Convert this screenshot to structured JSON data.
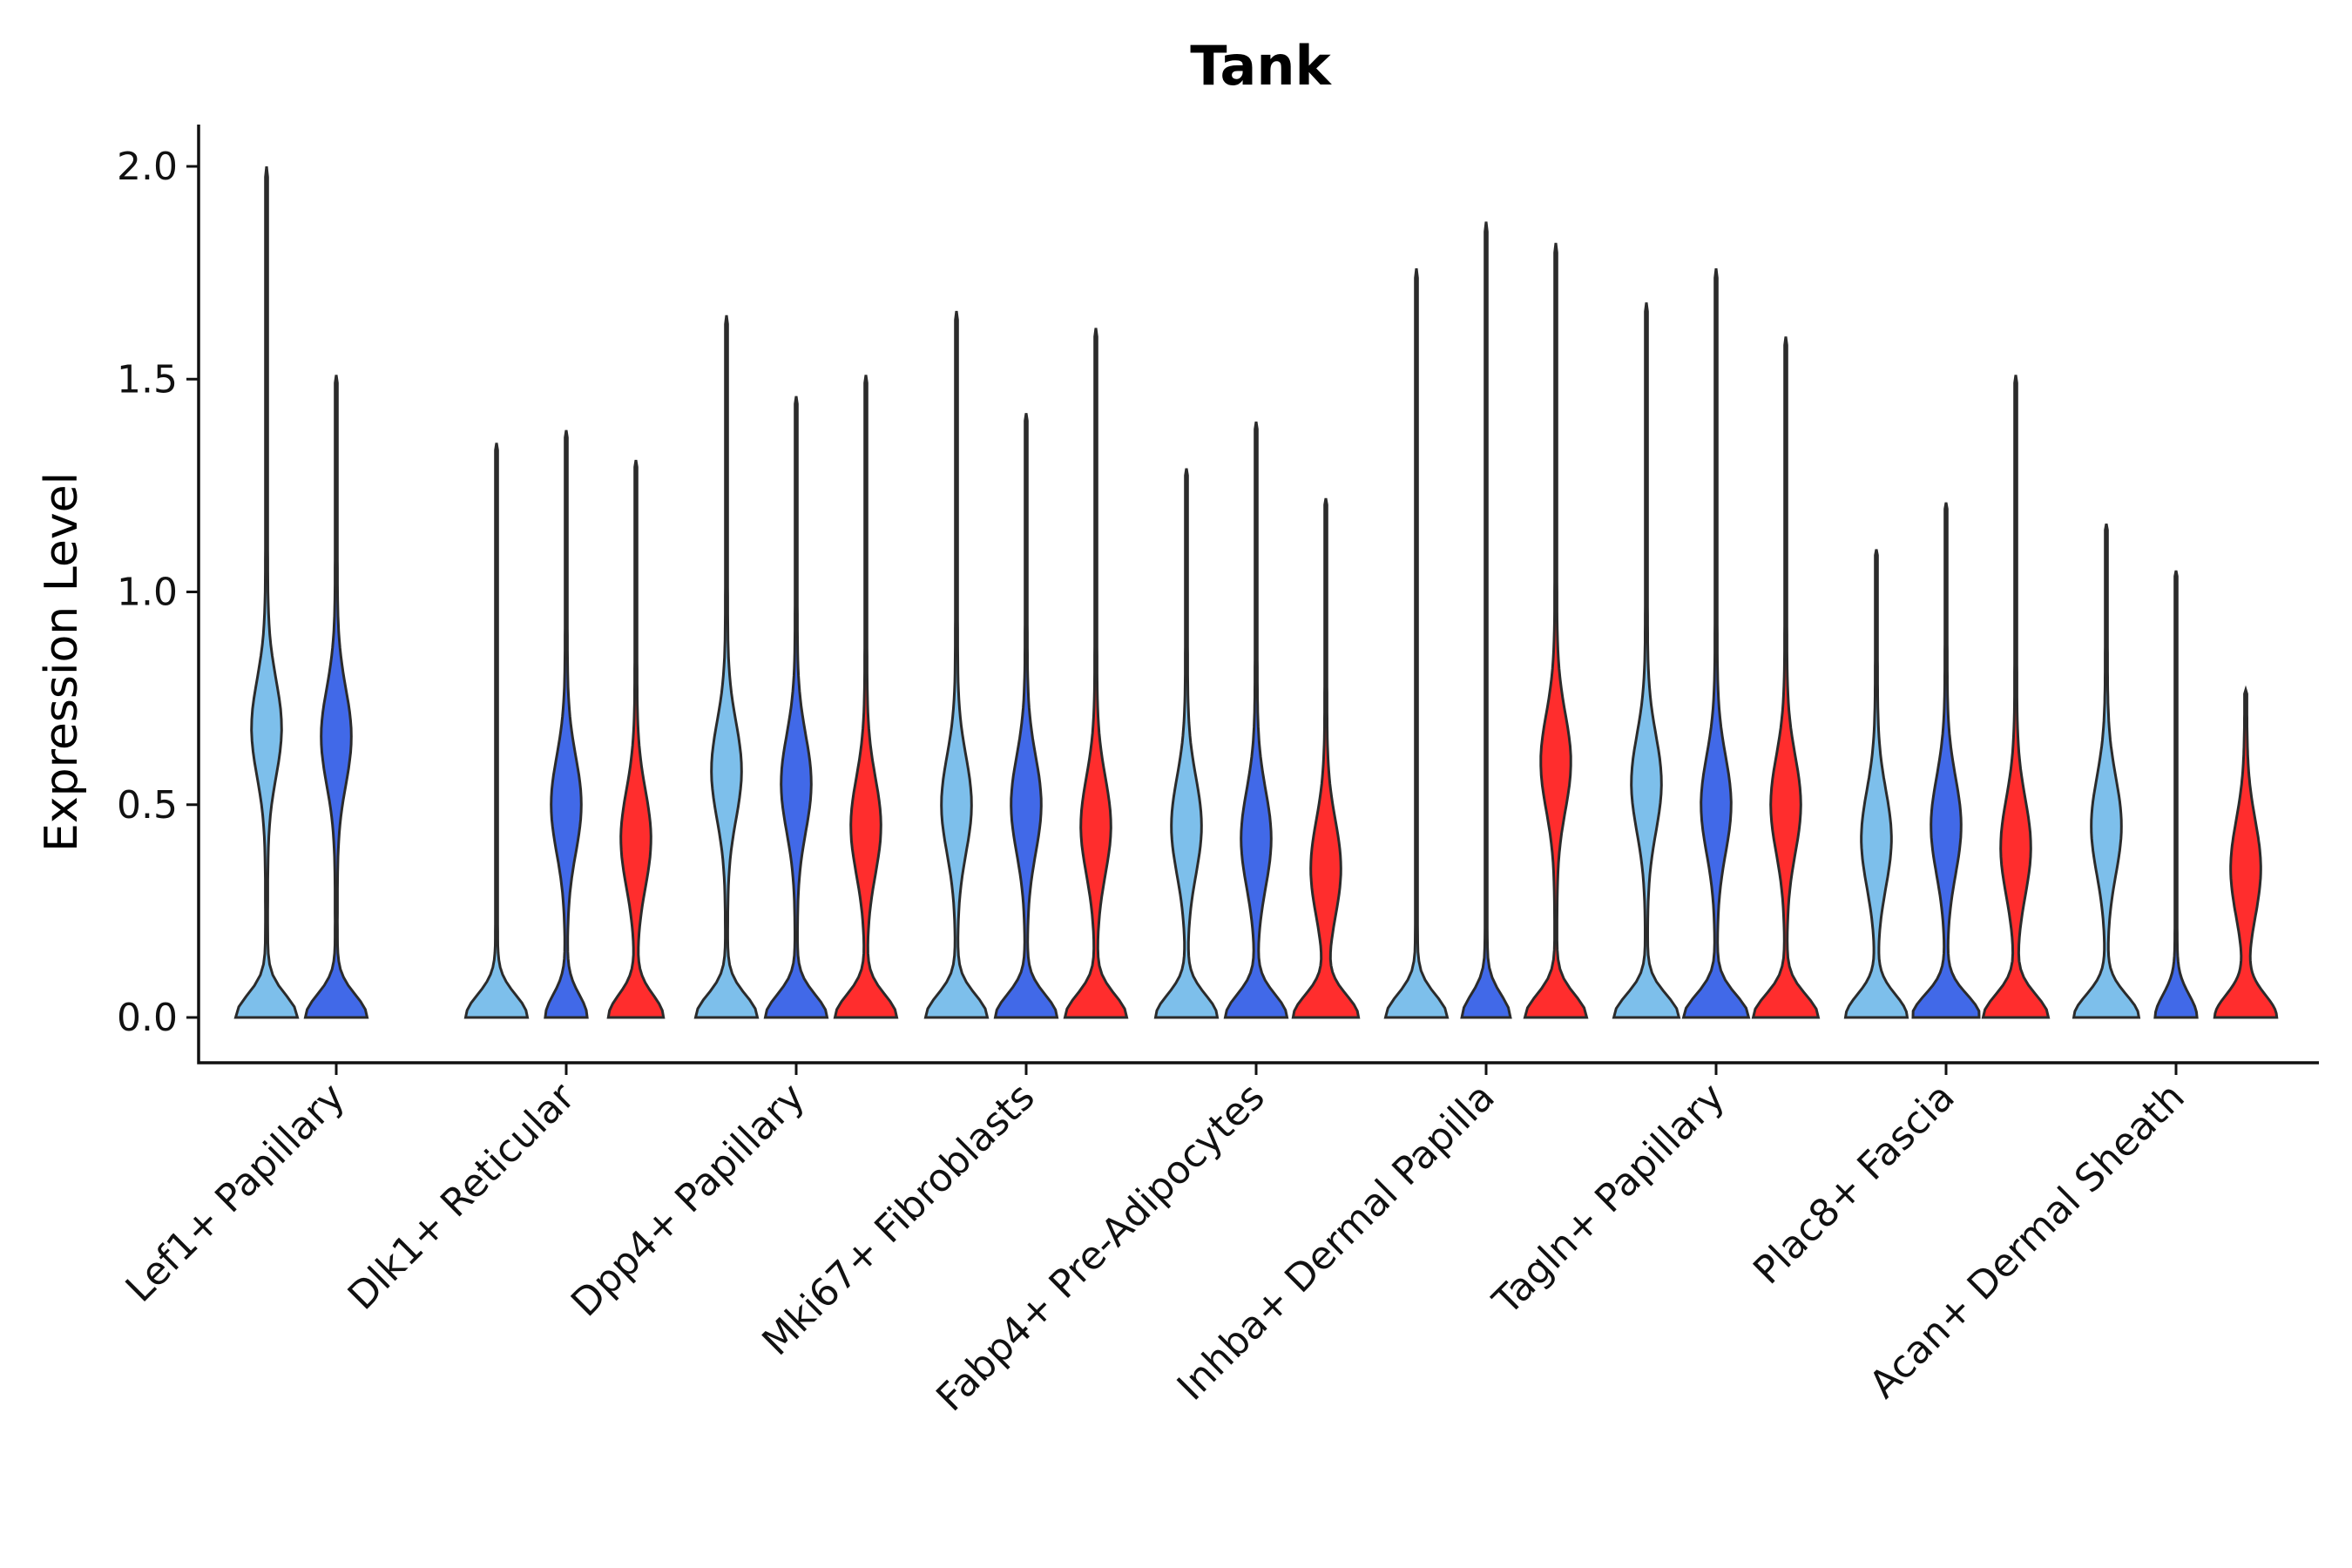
{
  "chart_data": {
    "type": "violin",
    "title": "Tank",
    "xlabel": "",
    "ylabel": "Expression Level",
    "ylim": [
      -0.1,
      2.1
    ],
    "yticks": [
      "0.0",
      "0.5",
      "1.0",
      "1.5",
      "2.0"
    ],
    "grid": false,
    "legend": "none",
    "groups": [
      {
        "name": "light",
        "color": "#7dbfeb"
      },
      {
        "name": "blue",
        "color": "#4169e8"
      },
      {
        "name": "red",
        "color": "#ff2d2d"
      }
    ],
    "categories": [
      {
        "label": "Lef1+ Papillary",
        "violins": [
          {
            "group": "light",
            "max": 2.0,
            "mode": 0.68,
            "zero_width": 0.9
          },
          {
            "group": "blue",
            "max": 1.51,
            "mode": 0.66,
            "zero_width": 0.9
          }
        ]
      },
      {
        "label": "Dlk1+ Reticular",
        "violins": [
          {
            "group": "light",
            "max": 1.35,
            "mode": 0.0,
            "zero_width": 0.9
          },
          {
            "group": "blue",
            "max": 1.38,
            "mode": 0.5,
            "zero_width": 0.6
          },
          {
            "group": "red",
            "max": 1.31,
            "mode": 0.42,
            "zero_width": 0.8
          }
        ]
      },
      {
        "label": "Dpp4+ Papillary",
        "violins": [
          {
            "group": "light",
            "max": 1.65,
            "mode": 0.58,
            "zero_width": 0.9
          },
          {
            "group": "blue",
            "max": 1.46,
            "mode": 0.55,
            "zero_width": 0.9
          },
          {
            "group": "red",
            "max": 1.51,
            "mode": 0.45,
            "zero_width": 0.9
          }
        ]
      },
      {
        "label": "Mki67+ Fibroblasts",
        "violins": [
          {
            "group": "light",
            "max": 1.66,
            "mode": 0.5,
            "zero_width": 0.9
          },
          {
            "group": "blue",
            "max": 1.42,
            "mode": 0.5,
            "zero_width": 0.9
          },
          {
            "group": "red",
            "max": 1.62,
            "mode": 0.45,
            "zero_width": 0.9
          }
        ]
      },
      {
        "label": "Fabp4+ Pre-Adipocytes",
        "violins": [
          {
            "group": "light",
            "max": 1.29,
            "mode": 0.45,
            "zero_width": 0.9
          },
          {
            "group": "blue",
            "max": 1.4,
            "mode": 0.42,
            "zero_width": 0.9
          },
          {
            "group": "red",
            "max": 1.22,
            "mode": 0.35,
            "zero_width": 0.95
          }
        ]
      },
      {
        "label": "Inhba+ Dermal Papilla",
        "violins": [
          {
            "group": "light",
            "max": 1.76,
            "mode": 0.0,
            "zero_width": 0.9
          },
          {
            "group": "blue",
            "max": 1.87,
            "mode": 0.0,
            "zero_width": 0.7
          },
          {
            "group": "red",
            "max": 1.82,
            "mode": 0.6,
            "zero_width": 0.9
          }
        ]
      },
      {
        "label": "Tagln+ Papillary",
        "violins": [
          {
            "group": "light",
            "max": 1.68,
            "mode": 0.55,
            "zero_width": 0.95
          },
          {
            "group": "blue",
            "max": 1.76,
            "mode": 0.5,
            "zero_width": 0.95
          },
          {
            "group": "red",
            "max": 1.6,
            "mode": 0.5,
            "zero_width": 0.95
          }
        ]
      },
      {
        "label": "Plac8+ Fascia",
        "violins": [
          {
            "group": "light",
            "max": 1.1,
            "mode": 0.42,
            "zero_width": 0.9
          },
          {
            "group": "blue",
            "max": 1.21,
            "mode": 0.45,
            "zero_width": 1.0
          },
          {
            "group": "red",
            "max": 1.51,
            "mode": 0.4,
            "zero_width": 0.95
          }
        ]
      },
      {
        "label": "Acan+ Dermal Sheath",
        "violins": [
          {
            "group": "light",
            "max": 1.16,
            "mode": 0.45,
            "zero_width": 0.95
          },
          {
            "group": "blue",
            "max": 1.05,
            "mode": 0.0,
            "zero_width": 0.6
          },
          {
            "group": "red",
            "max": 0.77,
            "mode": 0.35,
            "zero_width": 0.9
          }
        ]
      }
    ]
  }
}
